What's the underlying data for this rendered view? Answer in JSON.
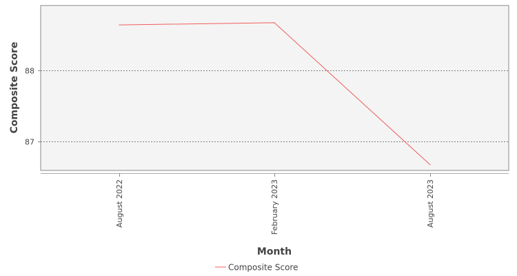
{
  "chart_data": {
    "type": "line",
    "title": "",
    "xlabel": "Month",
    "ylabel": "Composite Score",
    "categories": [
      "August 2022",
      "February 2023",
      "August 2023"
    ],
    "series": [
      {
        "name": "Composite Score",
        "values": [
          88.63,
          88.66,
          86.68
        ],
        "color": "#f15c5c"
      }
    ],
    "yticks": [
      87,
      88
    ],
    "ylim": [
      86.6,
      88.9
    ],
    "grid": true,
    "legend_position": "bottom-center",
    "plot_background": "#f4f4f4",
    "grid_color": "#555555"
  }
}
